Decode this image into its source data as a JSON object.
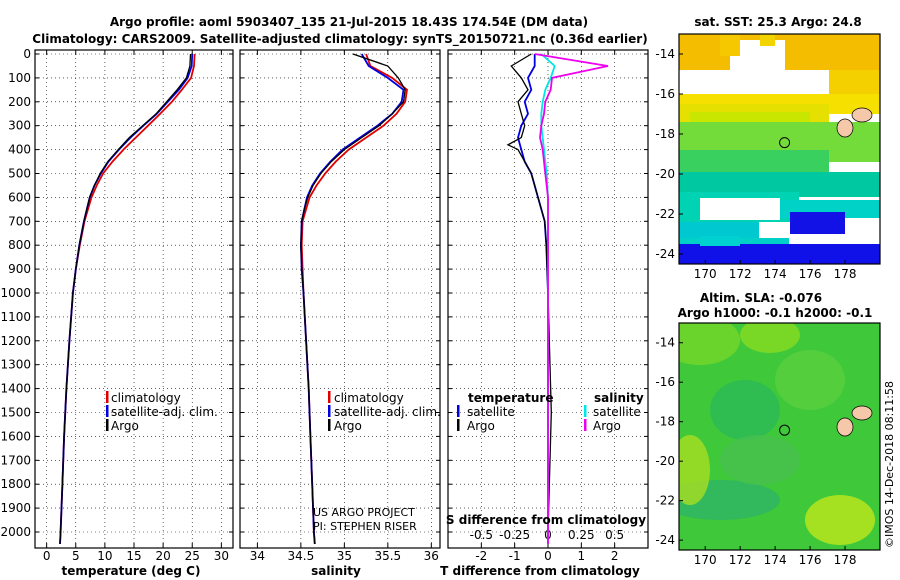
{
  "header": {
    "line1": "Argo profile: aoml 5903407_135 21-Jul-2015 18.43S 174.54E (DM data)",
    "line2": "Climatology: CARS2009. Satellite-adjusted climatology: synTS_20150721.nc (0.36d earlier)"
  },
  "credits": {
    "project": "US ARGO PROJECT",
    "pi": "PI: STEPHEN RISER",
    "imos": "©IMOS 14-Dec-2018 08:11:58"
  },
  "colors": {
    "climatology": "#e00000",
    "satellite": "#0000e0",
    "argo": "#000000",
    "sat_salinity": "#00e5e5",
    "argo_salinity": "#ee00ee"
  },
  "chart_data": [
    {
      "type": "line",
      "name": "temperature-profile",
      "xlabel": "temperature (deg C)",
      "ylabel": "",
      "xlim": [
        -2,
        32
      ],
      "ylim": [
        2100,
        0
      ],
      "xticks": [
        "0",
        "5",
        "10",
        "15",
        "20",
        "25",
        "30"
      ],
      "yticks": [
        "0",
        "100",
        "200",
        "300",
        "400",
        "500",
        "600",
        "700",
        "800",
        "900",
        "1000",
        "1100",
        "1200",
        "1300",
        "1400",
        "1500",
        "1600",
        "1700",
        "1800",
        "1900",
        "2000"
      ],
      "legend": [
        "climatology",
        "satellite-adj. clim.",
        "Argo"
      ],
      "series": [
        {
          "name": "climatology",
          "depth": [
            0,
            50,
            100,
            150,
            200,
            250,
            300,
            350,
            400,
            450,
            500,
            550,
            600,
            650,
            700,
            800,
            900,
            1000,
            1200,
            1400,
            1600,
            1800,
            2000,
            2050
          ],
          "values": [
            25.4,
            25.3,
            24.8,
            23.2,
            21.5,
            19.5,
            17.4,
            15.3,
            13.2,
            11.3,
            9.7,
            8.6,
            7.7,
            7.1,
            6.5,
            5.7,
            5.0,
            4.5,
            3.9,
            3.4,
            3.0,
            2.7,
            2.4,
            2.3
          ]
        },
        {
          "name": "satellite-adj. clim.",
          "depth": [
            0,
            50,
            100,
            150,
            200,
            250,
            300,
            350,
            400,
            450,
            500,
            550,
            600,
            650,
            700,
            800,
            900,
            1000,
            1200,
            1400,
            1600,
            1800,
            2000,
            2050
          ],
          "values": [
            25.0,
            24.9,
            24.2,
            22.7,
            20.8,
            18.9,
            16.6,
            14.4,
            12.4,
            10.6,
            9.3,
            8.2,
            7.4,
            6.9,
            6.4,
            5.6,
            5.0,
            4.5,
            3.9,
            3.4,
            3.0,
            2.7,
            2.4,
            2.3
          ]
        },
        {
          "name": "Argo",
          "depth": [
            0,
            50,
            100,
            150,
            200,
            250,
            300,
            350,
            400,
            450,
            500,
            550,
            600,
            650,
            700,
            800,
            900,
            1000,
            1200,
            1400,
            1600,
            1800,
            2000,
            2050
          ],
          "values": [
            24.7,
            24.6,
            24.0,
            22.4,
            20.6,
            18.8,
            16.5,
            14.2,
            12.3,
            10.5,
            9.2,
            8.2,
            7.4,
            6.9,
            6.4,
            5.6,
            5.0,
            4.5,
            3.9,
            3.4,
            3.0,
            2.7,
            2.4,
            2.3
          ]
        }
      ]
    },
    {
      "type": "line",
      "name": "salinity-profile",
      "xlabel": "salinity",
      "xlim": [
        33.8,
        36.1
      ],
      "ylim": [
        2100,
        0
      ],
      "xticks": [
        "34",
        "34.5",
        "35",
        "35.5",
        "36"
      ],
      "legend": [
        "climatology",
        "satellite-adj. clim.",
        "Argo"
      ],
      "series": [
        {
          "name": "climatology",
          "depth": [
            0,
            50,
            100,
            150,
            200,
            250,
            300,
            350,
            400,
            450,
            500,
            550,
            600,
            650,
            700,
            800,
            900,
            1000,
            1200,
            1400,
            1600,
            1800,
            2000,
            2050
          ],
          "values": [
            35.25,
            35.3,
            35.55,
            35.72,
            35.7,
            35.6,
            35.45,
            35.25,
            35.05,
            34.9,
            34.78,
            34.68,
            34.6,
            34.56,
            34.52,
            34.51,
            34.52,
            34.53,
            34.56,
            34.59,
            34.61,
            34.63,
            34.65,
            34.66
          ]
        },
        {
          "name": "satellite-adj. clim.",
          "depth": [
            0,
            50,
            100,
            150,
            200,
            250,
            300,
            350,
            400,
            450,
            500,
            550,
            600,
            650,
            700,
            800,
            900,
            1000,
            1200,
            1400,
            1600,
            1800,
            2000,
            2050
          ],
          "values": [
            35.2,
            35.28,
            35.5,
            35.68,
            35.66,
            35.55,
            35.38,
            35.18,
            34.98,
            34.84,
            34.72,
            34.63,
            34.57,
            34.54,
            34.51,
            34.5,
            34.51,
            34.53,
            34.56,
            34.59,
            34.61,
            34.63,
            34.65,
            34.66
          ]
        },
        {
          "name": "Argo",
          "depth": [
            0,
            50,
            100,
            150,
            200,
            250,
            300,
            350,
            400,
            450,
            500,
            550,
            600,
            650,
            700,
            800,
            900,
            1000,
            1200,
            1400,
            1600,
            1800,
            2000,
            2050
          ],
          "values": [
            35.1,
            35.5,
            35.62,
            35.7,
            35.68,
            35.55,
            35.4,
            35.2,
            35.0,
            34.85,
            34.73,
            34.64,
            34.58,
            34.54,
            34.51,
            34.5,
            34.51,
            34.53,
            34.56,
            34.59,
            34.61,
            34.63,
            34.65,
            34.66
          ]
        }
      ]
    },
    {
      "type": "line",
      "name": "difference-profile",
      "xlabel": "T difference from climatology",
      "xlabel2": "S difference from climatology",
      "xlim": [
        -3,
        3
      ],
      "ylim": [
        2100,
        0
      ],
      "xticks": [
        "-2",
        "-1",
        "0",
        "1",
        "2"
      ],
      "xticks2": [
        "-0.5",
        "-0.25",
        "0",
        "0.25",
        "0.5"
      ],
      "legend_left_title": "temperature",
      "legend_right_title": "salinity",
      "legend": [
        "satellite",
        "Argo",
        "satellite",
        "Argo"
      ],
      "series": [
        {
          "name": "T satellite",
          "depth": [
            0,
            50,
            100,
            150,
            200,
            250,
            300,
            350,
            400,
            450,
            500,
            600,
            700,
            800,
            1000,
            1500,
            2000,
            2050
          ],
          "values": [
            -0.4,
            -0.4,
            -0.6,
            -0.5,
            -0.7,
            -0.6,
            -0.8,
            -0.9,
            -0.8,
            -0.7,
            -0.5,
            -0.3,
            -0.1,
            -0.05,
            0,
            0,
            0,
            0
          ]
        },
        {
          "name": "T Argo",
          "depth": [
            0,
            50,
            100,
            150,
            200,
            250,
            300,
            350,
            380,
            400,
            450,
            500,
            600,
            700,
            800,
            1000,
            1500,
            2000,
            2050
          ],
          "values": [
            -0.5,
            -1.1,
            -0.8,
            -0.6,
            -0.9,
            -0.8,
            -0.7,
            -0.8,
            -1.2,
            -0.9,
            -0.7,
            -0.5,
            -0.3,
            -0.1,
            -0.05,
            0,
            0.1,
            0,
            0
          ]
        },
        {
          "name": "S satellite",
          "depth": [
            0,
            50,
            100,
            150,
            200,
            250,
            300,
            350,
            400,
            450,
            500,
            600,
            700,
            800,
            1000,
            1500,
            2000,
            2050
          ],
          "values": [
            -0.05,
            0.05,
            0.02,
            -0.02,
            -0.04,
            -0.05,
            -0.05,
            -0.04,
            -0.03,
            -0.02,
            -0.01,
            0,
            0,
            0,
            0,
            0,
            0,
            0
          ]
        },
        {
          "name": "S Argo",
          "depth": [
            0,
            50,
            100,
            150,
            200,
            250,
            300,
            350,
            400,
            450,
            500,
            600,
            700,
            800,
            1000,
            1500,
            2000,
            2050
          ],
          "values": [
            -0.1,
            0.45,
            0.03,
            0.02,
            -0.02,
            -0.03,
            -0.05,
            -0.06,
            -0.04,
            -0.03,
            -0.02,
            0,
            0,
            0,
            0,
            0,
            0,
            0
          ]
        }
      ]
    },
    {
      "type": "heatmap",
      "name": "sst-map",
      "title": "sat. SST: 25.3 Argo: 24.8",
      "xlim": [
        168.5,
        180
      ],
      "ylim": [
        -24.5,
        -13
      ],
      "xticks": [
        "170",
        "172",
        "174",
        "176",
        "178"
      ],
      "yticks": [
        "-14",
        "-16",
        "-18",
        "-20",
        "-22",
        "-24"
      ],
      "argo_position": [
        174.54,
        -18.43
      ]
    },
    {
      "type": "heatmap",
      "name": "sla-map",
      "title": "Altim. SLA: -0.076",
      "subtitle": "Argo h1000: -0.1 h2000: -0.1",
      "xlim": [
        168.5,
        180
      ],
      "ylim": [
        -24.5,
        -13
      ],
      "xticks": [
        "170",
        "172",
        "174",
        "176",
        "178"
      ],
      "yticks": [
        "-14",
        "-16",
        "-18",
        "-20",
        "-22",
        "-24"
      ],
      "argo_position": [
        174.54,
        -18.43
      ]
    }
  ]
}
